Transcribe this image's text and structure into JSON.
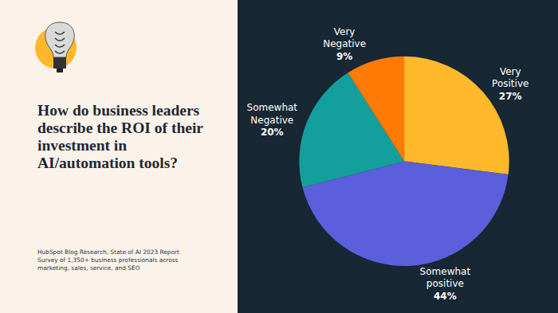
{
  "chart_data": {
    "type": "pie",
    "title": "How do business leaders describe the ROI of their investment in AI/automation tools?",
    "annotations": [
      "HubSpot Blog Research, State of AI 2023 Report",
      "Survey of 1,350+ business professionals across marketing, sales, service, and SEO"
    ],
    "categories": [
      "Very Positive",
      "Somewhat positive",
      "Somewhat Negative",
      "Very Negative"
    ],
    "values": [
      27,
      44,
      20,
      9
    ],
    "value_labels": [
      "27%",
      "44%",
      "20%",
      "9%"
    ],
    "colors": [
      "#ffb92a",
      "#5b5fdc",
      "#13a09c",
      "#ff7a06"
    ],
    "data_labels": true
  }
}
